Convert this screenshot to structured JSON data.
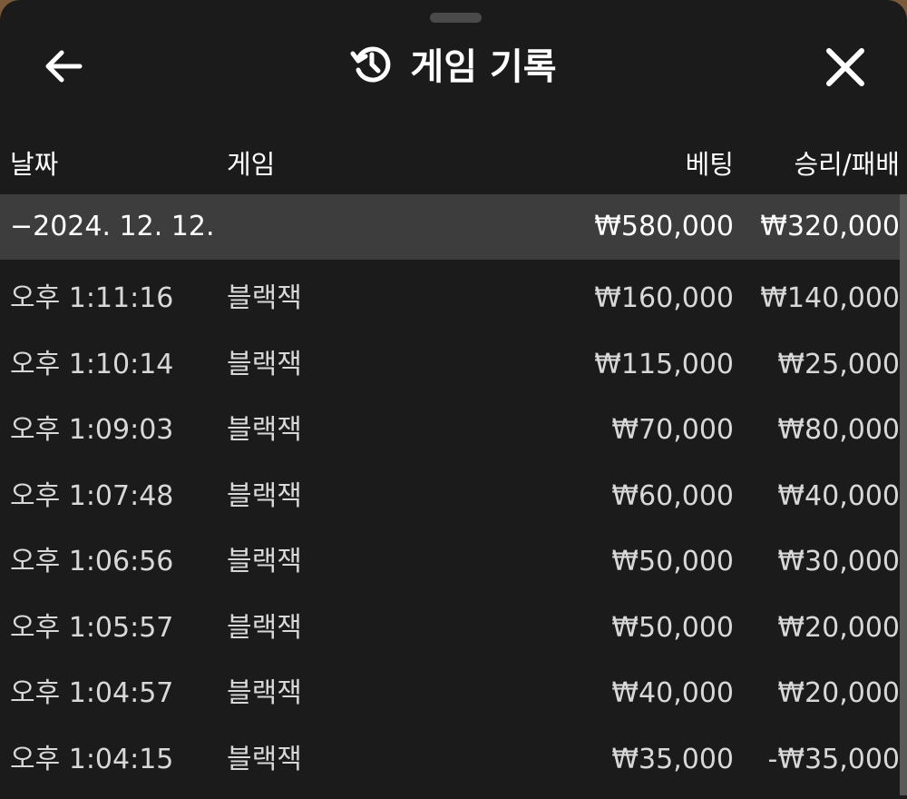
{
  "header": {
    "title": "게임 기록",
    "back_icon": "arrow-left-icon",
    "history_icon": "history-icon",
    "close_icon": "close-icon"
  },
  "columns": [
    "날짜",
    "게임",
    "베팅",
    "승리/패배"
  ],
  "group": {
    "date": "−2024. 12. 12.",
    "bet": "₩580,000",
    "result": "₩320,000"
  },
  "rows": [
    {
      "time": "오후 1:11:16",
      "game": "블랙잭",
      "bet": "₩160,000",
      "result": "₩140,000"
    },
    {
      "time": "오후 1:10:14",
      "game": "블랙잭",
      "bet": "₩115,000",
      "result": "₩25,000"
    },
    {
      "time": "오후 1:09:03",
      "game": "블랙잭",
      "bet": "₩70,000",
      "result": "₩80,000"
    },
    {
      "time": "오후 1:07:48",
      "game": "블랙잭",
      "bet": "₩60,000",
      "result": "₩40,000"
    },
    {
      "time": "오후 1:06:56",
      "game": "블랙잭",
      "bet": "₩50,000",
      "result": "₩30,000"
    },
    {
      "time": "오후 1:05:57",
      "game": "블랙잭",
      "bet": "₩50,000",
      "result": "₩20,000"
    },
    {
      "time": "오후 1:04:57",
      "game": "블랙잭",
      "bet": "₩40,000",
      "result": "₩20,000"
    },
    {
      "time": "오후 1:04:15",
      "game": "블랙잭",
      "bet": "₩35,000",
      "result": "-₩35,000"
    }
  ]
}
